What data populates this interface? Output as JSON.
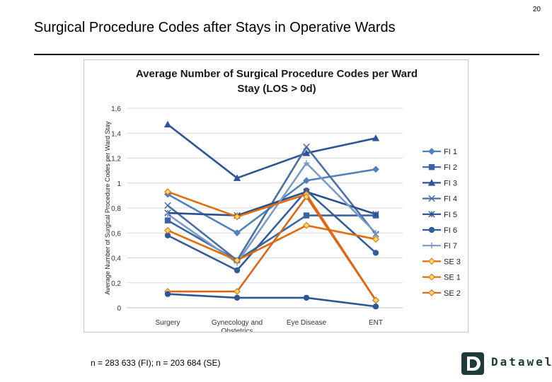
{
  "page": {
    "number": "20",
    "title": "Surgical Procedure Codes after Stays in Operative Wards",
    "footnote": "n = 283 633 (FI); n = 203 684 (SE)",
    "logo_text": "Datawell"
  },
  "chart_data": {
    "type": "line",
    "title": "Average Number of Surgical Procedure Codes per Ward Stay (LOS > 0d)",
    "title_lines": [
      "Average Number of Surgical Procedure Codes per Ward",
      "Stay (LOS > 0d)"
    ],
    "ylabel": "Average Number of Surgical Procedure Codes per Ward Stay",
    "xlabel": "",
    "categories": [
      "Surgery",
      "Gynecology and Obstetrics",
      "Eye Disease",
      "ENT"
    ],
    "category_lines": [
      [
        "Surgery"
      ],
      [
        "Gynecology and",
        "Obstetrics"
      ],
      [
        "Eye Disease"
      ],
      [
        "ENT"
      ]
    ],
    "ylim": [
      0,
      1.6
    ],
    "yticks": [
      0,
      0.2,
      0.4,
      0.6,
      0.8,
      1,
      1.2,
      1.4,
      1.6
    ],
    "ytick_labels": [
      "0",
      "0,2",
      "0,4",
      "0,6",
      "0,8",
      "1",
      "1,2",
      "1,4",
      "1,6"
    ],
    "grid": true,
    "legend_position": "right",
    "series": [
      {
        "name": "FI 1",
        "color": "#4f81bd",
        "marker": "diamond",
        "values": [
          0.91,
          0.6,
          1.02,
          1.11
        ]
      },
      {
        "name": "FI 2",
        "color": "#3a64a4",
        "marker": "square",
        "values": [
          0.7,
          0.38,
          0.74,
          0.74
        ]
      },
      {
        "name": "FI 3",
        "color": "#2e5597",
        "marker": "triangle",
        "values": [
          1.47,
          1.04,
          1.24,
          1.36
        ]
      },
      {
        "name": "FI 4",
        "color": "#4a6fa8",
        "marker": "x",
        "values": [
          0.82,
          0.38,
          1.29,
          0.59
        ]
      },
      {
        "name": "FI 5",
        "color": "#28508c",
        "marker": "star",
        "values": [
          0.76,
          0.74,
          0.93,
          0.75
        ]
      },
      {
        "name": "FI 6",
        "color": "#335d99",
        "marker": "circle",
        "values": [
          0.58,
          0.3,
          0.94,
          0.44
        ]
      },
      {
        "name": "FI 7",
        "color": "#7a9bc9",
        "marker": "plus",
        "values": [
          0.75,
          0.36,
          1.16,
          0.6
        ]
      },
      {
        "name": "SE 3",
        "color": "#e36c0a",
        "marker": "diamond",
        "values": [
          0.62,
          0.38,
          0.66,
          0.55
        ]
      },
      {
        "name": "SE 1",
        "color": "#e46c0a",
        "marker": "diamond",
        "values": [
          0.93,
          0.73,
          0.91,
          0.06
        ]
      },
      {
        "name": "SE 2",
        "color": "#d9661a",
        "marker": "diamond",
        "values": [
          0.13,
          0.13,
          0.89,
          0.06
        ]
      },
      {
        "name": "",
        "color": "#2e5597",
        "marker": "circle",
        "values": [
          0.11,
          0.08,
          0.08,
          0.01
        ]
      }
    ],
    "colors": {
      "accent_blue": "#2e5597",
      "accent_orange": "#e46c0a",
      "marker_fill_yellow": "#ffd966"
    }
  }
}
